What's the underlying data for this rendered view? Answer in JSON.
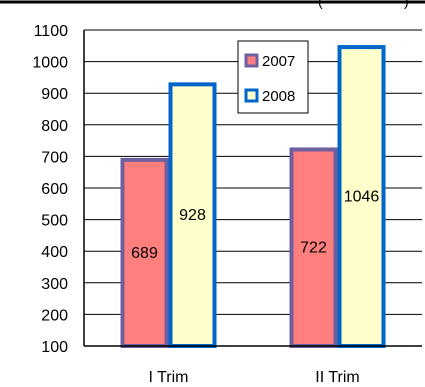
{
  "chart_data": {
    "type": "bar",
    "header_fragment": "(",
    "header_fragment_right": ")",
    "categories": [
      "I Trim",
      "II Trim"
    ],
    "series": [
      {
        "name": "2007",
        "values": [
          689,
          722
        ],
        "fill": "#ff7f7f",
        "stroke": "#6e5fa0",
        "label_color": "#000000"
      },
      {
        "name": "2008",
        "values": [
          928,
          1046
        ],
        "fill": "#ffffcc",
        "stroke": "#0066cc",
        "label_color": "#000000"
      }
    ],
    "data_labels": [
      [
        "689",
        "722"
      ],
      [
        "928",
        "1046"
      ]
    ],
    "ylim": [
      100,
      1100
    ],
    "yticks": [
      100,
      200,
      300,
      400,
      500,
      600,
      700,
      800,
      900,
      1000,
      1100
    ],
    "grid": true,
    "legend_position": "top-right",
    "xlabel": "",
    "ylabel": ""
  }
}
